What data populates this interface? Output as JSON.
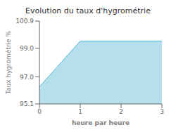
{
  "chart_data": {
    "type": "area",
    "title": "Evolution du taux d'hygrométrie",
    "xlabel": "heure par heure",
    "ylabel": "Taux hygrométrie %",
    "x": [
      0,
      1,
      2,
      3
    ],
    "series": [
      {
        "name": "Taux hygrométrie %",
        "color": "#5bb8d4",
        "values": [
          96.3,
          99.5,
          99.5,
          99.5
        ]
      }
    ],
    "xlim": [
      0,
      3
    ],
    "ylim": [
      95.1,
      100.9
    ],
    "xticks": [
      0,
      1,
      2,
      3
    ],
    "yticks": [
      95.1,
      {
        "value": 97,
        "label": "97.0"
      },
      {
        "value": 99,
        "label": "99.0"
      },
      100.9
    ],
    "grid": false
  }
}
